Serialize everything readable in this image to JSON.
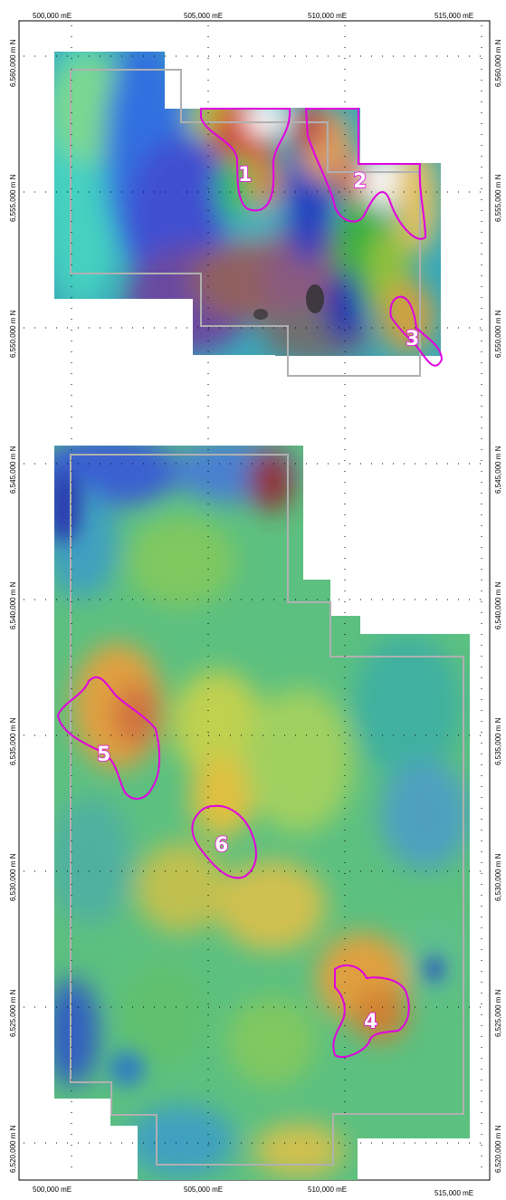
{
  "axes": {
    "easting_top": [
      "500,000 mE",
      "505,000 mE",
      "510,000 mE",
      "515,000 mE"
    ],
    "easting_bottom": [
      "500,000 mE",
      "505,000 mE",
      "510,000 mE",
      "515,000 mE"
    ],
    "northing_left": [
      "6,560,000 m N",
      "6,555,000 m N",
      "6,550,000 m N",
      "6,545,000 m N",
      "6,540,000 m N",
      "6,535,000 m N",
      "6,530,000 m N",
      "6,525,000 m N",
      "6,520,000 m N"
    ],
    "northing_right": [
      "6,560,000 m N",
      "6,555,000 m N",
      "6,550,000 m N",
      "6,545,000 m N",
      "6,540,000 m N",
      "6,535,000 m N",
      "6,530,000 m N",
      "6,525,000 m N",
      "6,520,000 m N"
    ]
  },
  "targets": [
    {
      "label": "1"
    },
    {
      "label": "2"
    },
    {
      "label": "3"
    },
    {
      "label": "4"
    },
    {
      "label": "5"
    },
    {
      "label": "6"
    }
  ],
  "colors": {
    "target_outline": "#e000e0",
    "tenement_boundary": "#b0b0b0",
    "grid_dots": "#000000"
  }
}
